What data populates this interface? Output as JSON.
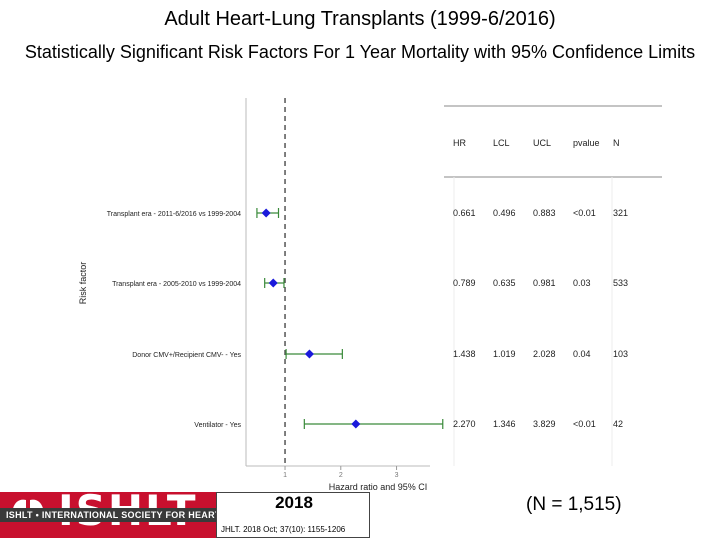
{
  "header": {
    "title": "Adult Heart-Lung Transplants (1999-6/2016)",
    "subtitle": "Statistically Significant Risk Factors For 1 Year Mortality with 95% Confidence Limits"
  },
  "chart_data": {
    "type": "scatter",
    "subtype": "forest-plot",
    "xlabel": "Hazard ratio and 95% CI",
    "ylabel": "Risk factor",
    "xlim": [
      0.3,
      3.6
    ],
    "xticks": [
      1,
      2,
      3
    ],
    "reference_line": 1,
    "marker_color": "#1a1adb",
    "ci_color": "#3a8a3a",
    "table_columns": [
      "HR",
      "LCL",
      "UCL",
      "pvalue",
      "N"
    ],
    "rows": [
      {
        "label": "Transplant era - 2011-6/2016 vs 1999-2004",
        "hr": 0.661,
        "lcl": 0.496,
        "ucl": 0.883,
        "hr_text": "0.661",
        "lcl_text": "0.496",
        "ucl_text": "0.883",
        "pvalue": "<0.01",
        "n": "321"
      },
      {
        "label": "Transplant era - 2005-2010 vs 1999-2004",
        "hr": 0.789,
        "lcl": 0.635,
        "ucl": 0.981,
        "hr_text": "0.789",
        "lcl_text": "0.635",
        "ucl_text": "0.981",
        "pvalue": "0.03",
        "n": "533"
      },
      {
        "label": "Donor CMV+/Recipient CMV- - Yes",
        "hr": 1.438,
        "lcl": 1.019,
        "ucl": 2.028,
        "hr_text": "1.438",
        "lcl_text": "1.019",
        "ucl_text": "2.028",
        "pvalue": "0.04",
        "n": "103"
      },
      {
        "label": "Ventilator - Yes",
        "hr": 2.27,
        "lcl": 1.346,
        "ucl": 3.829,
        "hr_text": "2.270",
        "lcl_text": "1.346",
        "ucl_text": "3.829",
        "pvalue": "<0.01",
        "n": "42"
      }
    ]
  },
  "footer": {
    "logo_text": "ISHLT",
    "logo_banner": "ISHLT • INTERNATIONAL SOCIETY FOR HEART AND LUNG TRANSPLANTATION",
    "year": "2018",
    "citation": "JHLT. 2018 Oct; 37(10): 1155-1206",
    "n_label": "(N = 1,515)"
  }
}
